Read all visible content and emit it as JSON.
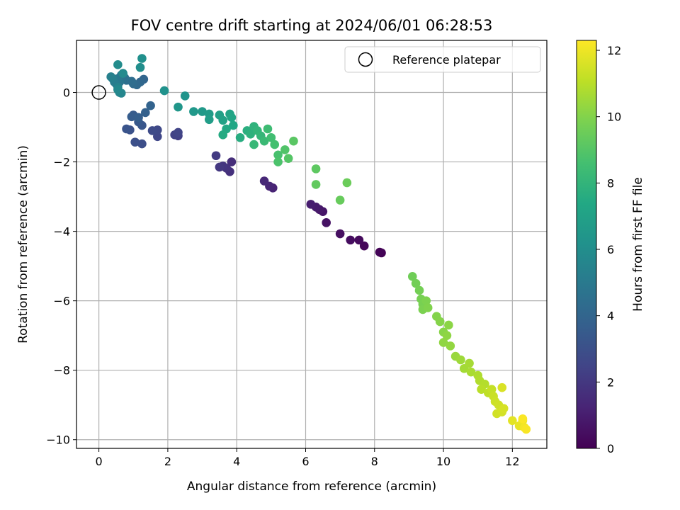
{
  "chart_data": {
    "type": "scatter",
    "title": "FOV centre drift starting at 2024/06/01 06:28:53",
    "xlabel": "Angular distance from reference (arcmin)",
    "ylabel": "Rotation from reference (arcmin)",
    "xlim": [
      -0.65,
      13.0
    ],
    "ylim": [
      -10.25,
      1.5
    ],
    "xticks": [
      0,
      2,
      4,
      6,
      8,
      10,
      12
    ],
    "yticks": [
      0,
      -2,
      -4,
      -6,
      -8,
      -10
    ],
    "grid": true,
    "legend": {
      "position": "top-right",
      "entries": [
        "Reference platepar"
      ]
    },
    "reference_point": {
      "x": 0,
      "y": 0,
      "label": "Reference platepar"
    },
    "colorbar": {
      "label": "Hours from first FF file",
      "range": [
        0,
        12.3
      ],
      "ticks": [
        0,
        2,
        4,
        6,
        8,
        10,
        12
      ],
      "colormap": "viridis"
    },
    "points": [
      [
        8.2,
        -4.62,
        0.0
      ],
      [
        8.15,
        -4.6,
        0.1
      ],
      [
        7.7,
        -4.42,
        0.2
      ],
      [
        7.55,
        -4.25,
        0.3
      ],
      [
        7.3,
        -4.25,
        0.4
      ],
      [
        7.0,
        -4.07,
        0.5
      ],
      [
        6.6,
        -3.75,
        0.6
      ],
      [
        6.5,
        -3.43,
        0.7
      ],
      [
        6.4,
        -3.37,
        0.8
      ],
      [
        6.3,
        -3.3,
        0.9
      ],
      [
        6.15,
        -3.22,
        1.0
      ],
      [
        5.05,
        -2.75,
        1.2
      ],
      [
        4.95,
        -2.7,
        1.3
      ],
      [
        4.8,
        -2.55,
        1.4
      ],
      [
        3.85,
        -2.0,
        1.6
      ],
      [
        3.8,
        -2.28,
        1.7
      ],
      [
        3.7,
        -2.18,
        1.8
      ],
      [
        3.6,
        -2.12,
        1.9
      ],
      [
        3.5,
        -2.15,
        2.0
      ],
      [
        3.4,
        -1.82,
        2.1
      ],
      [
        2.3,
        -1.25,
        2.3
      ],
      [
        2.2,
        -1.22,
        2.4
      ],
      [
        2.3,
        -1.15,
        2.5
      ],
      [
        1.7,
        -1.27,
        2.6
      ],
      [
        1.7,
        -1.08,
        2.7
      ],
      [
        1.55,
        -1.1,
        2.8
      ],
      [
        1.25,
        -1.48,
        2.9
      ],
      [
        1.05,
        -1.43,
        3.0
      ],
      [
        0.9,
        -1.08,
        3.1
      ],
      [
        0.8,
        -1.05,
        3.2
      ],
      [
        1.25,
        -0.95,
        3.3
      ],
      [
        1.15,
        -0.85,
        3.4
      ],
      [
        1.0,
        -0.65,
        3.5
      ],
      [
        0.95,
        -0.7,
        3.6
      ],
      [
        1.15,
        -0.72,
        3.7
      ],
      [
        1.35,
        -0.58,
        3.8
      ],
      [
        1.5,
        -0.38,
        3.9
      ],
      [
        1.3,
        0.38,
        4.0
      ],
      [
        1.2,
        0.3,
        4.1
      ],
      [
        1.1,
        0.22,
        4.2
      ],
      [
        1.0,
        0.25,
        4.3
      ],
      [
        0.95,
        0.32,
        4.4
      ],
      [
        0.8,
        0.35,
        4.5
      ],
      [
        0.75,
        0.42,
        4.6
      ],
      [
        0.65,
        0.5,
        4.7
      ],
      [
        0.6,
        0.3,
        4.8
      ],
      [
        0.55,
        0.4,
        4.9
      ],
      [
        0.5,
        0.25,
        5.0
      ],
      [
        0.45,
        0.3,
        5.1
      ],
      [
        0.4,
        0.4,
        5.2
      ],
      [
        0.35,
        0.45,
        5.3
      ],
      [
        0.55,
        0.15,
        5.4
      ],
      [
        0.6,
        0.0,
        5.5
      ],
      [
        0.65,
        -0.02,
        5.6
      ],
      [
        0.55,
        0.08,
        5.7
      ],
      [
        0.7,
        0.55,
        5.8
      ],
      [
        0.55,
        0.8,
        5.9
      ],
      [
        1.2,
        0.72,
        6.0
      ],
      [
        1.25,
        0.98,
        6.1
      ],
      [
        1.9,
        0.05,
        6.2
      ],
      [
        2.5,
        -0.1,
        6.3
      ],
      [
        2.3,
        -0.42,
        6.4
      ],
      [
        2.75,
        -0.55,
        6.5
      ],
      [
        3.0,
        -0.55,
        6.6
      ],
      [
        3.2,
        -0.62,
        6.7
      ],
      [
        3.2,
        -0.78,
        6.8
      ],
      [
        3.5,
        -0.65,
        6.9
      ],
      [
        3.6,
        -0.8,
        7.0
      ],
      [
        3.8,
        -0.62,
        7.1
      ],
      [
        3.85,
        -0.72,
        7.2
      ],
      [
        3.9,
        -0.95,
        7.3
      ],
      [
        3.7,
        -1.05,
        7.4
      ],
      [
        3.6,
        -1.22,
        7.5
      ],
      [
        4.1,
        -1.3,
        7.6
      ],
      [
        4.3,
        -1.1,
        7.7
      ],
      [
        4.4,
        -1.2,
        7.8
      ],
      [
        4.5,
        -0.98,
        7.9
      ],
      [
        4.6,
        -1.1,
        8.0
      ],
      [
        4.7,
        -1.25,
        8.1
      ],
      [
        4.5,
        -1.5,
        8.2
      ],
      [
        4.8,
        -1.4,
        8.3
      ],
      [
        4.9,
        -1.05,
        8.4
      ],
      [
        5.0,
        -1.3,
        8.5
      ],
      [
        5.1,
        -1.5,
        8.6
      ],
      [
        5.2,
        -1.8,
        8.7
      ],
      [
        5.2,
        -2.0,
        8.8
      ],
      [
        5.4,
        -1.65,
        8.9
      ],
      [
        5.5,
        -1.9,
        9.0
      ],
      [
        5.65,
        -1.4,
        9.1
      ],
      [
        6.3,
        -2.2,
        9.2
      ],
      [
        6.3,
        -2.65,
        9.3
      ],
      [
        7.0,
        -3.1,
        9.4
      ],
      [
        7.2,
        -2.6,
        9.5
      ],
      [
        9.1,
        -5.3,
        9.6
      ],
      [
        9.2,
        -5.5,
        9.65
      ],
      [
        9.3,
        -5.7,
        9.7
      ],
      [
        9.35,
        -5.95,
        9.75
      ],
      [
        9.4,
        -6.1,
        9.8
      ],
      [
        9.4,
        -6.25,
        9.85
      ],
      [
        9.5,
        -6.0,
        9.9
      ],
      [
        9.55,
        -6.2,
        9.95
      ],
      [
        9.8,
        -6.45,
        10.0
      ],
      [
        9.9,
        -6.6,
        10.05
      ],
      [
        10.0,
        -6.9,
        10.1
      ],
      [
        10.15,
        -6.7,
        10.15
      ],
      [
        10.1,
        -7.0,
        10.2
      ],
      [
        10.0,
        -7.2,
        10.25
      ],
      [
        10.2,
        -7.3,
        10.3
      ],
      [
        10.35,
        -7.6,
        10.4
      ],
      [
        10.5,
        -7.7,
        10.5
      ],
      [
        10.6,
        -7.95,
        10.6
      ],
      [
        10.75,
        -7.8,
        10.65
      ],
      [
        10.8,
        -8.05,
        10.7
      ],
      [
        11.0,
        -8.15,
        10.8
      ],
      [
        11.05,
        -8.3,
        10.85
      ],
      [
        11.2,
        -8.4,
        10.9
      ],
      [
        11.1,
        -8.55,
        11.0
      ],
      [
        11.3,
        -8.65,
        11.1
      ],
      [
        11.4,
        -8.55,
        11.2
      ],
      [
        11.45,
        -8.75,
        11.3
      ],
      [
        11.5,
        -8.9,
        11.35
      ],
      [
        11.6,
        -9.0,
        11.4
      ],
      [
        11.55,
        -9.25,
        11.45
      ],
      [
        11.7,
        -9.2,
        11.5
      ],
      [
        11.75,
        -9.1,
        11.55
      ],
      [
        11.7,
        -8.5,
        11.6
      ],
      [
        12.0,
        -9.45,
        11.8
      ],
      [
        12.2,
        -9.6,
        11.9
      ],
      [
        12.3,
        -9.45,
        12.0
      ],
      [
        12.35,
        -9.65,
        12.1
      ],
      [
        12.4,
        -9.7,
        12.2
      ],
      [
        12.3,
        -9.4,
        12.25
      ]
    ]
  }
}
